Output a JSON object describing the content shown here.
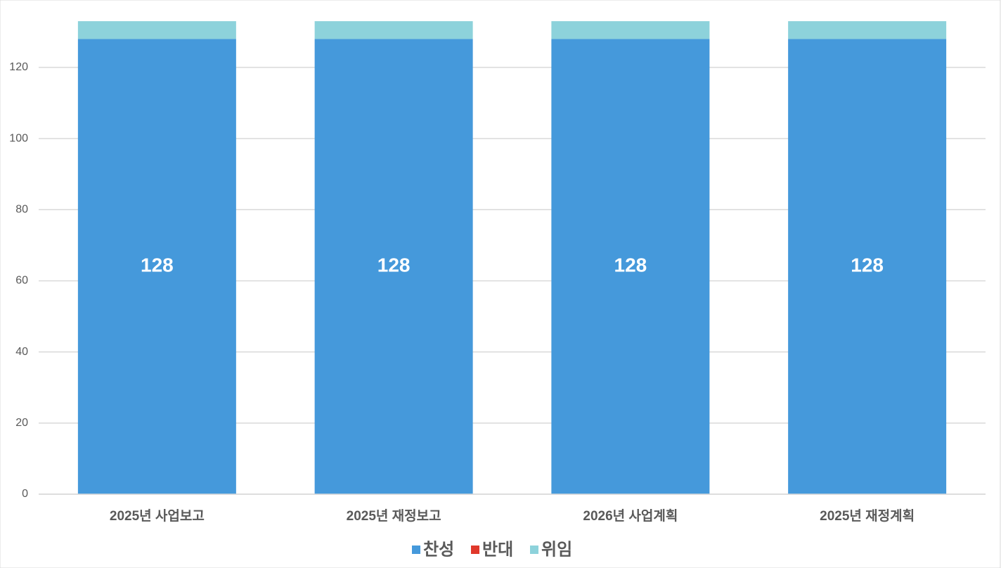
{
  "chart_data": {
    "type": "stacked_bar",
    "categories": [
      "2025년 사업보고",
      "2025년 재정보고",
      "2026년 사업계획",
      "2025년 재정계획"
    ],
    "series": [
      {
        "name": "찬성",
        "color": "#4599db",
        "values": [
          128,
          128,
          128,
          128
        ],
        "labels": true
      },
      {
        "name": "반대",
        "color": "#e0382b",
        "values": [
          0,
          0,
          0,
          0
        ]
      },
      {
        "name": "위임",
        "color": "#8dd2db",
        "values": [
          5,
          5,
          5,
          5
        ]
      }
    ],
    "ylim": [
      0,
      135
    ],
    "yticks": [
      0,
      20,
      40,
      60,
      80,
      100,
      120
    ],
    "grid": true,
    "legend": "bottom"
  }
}
